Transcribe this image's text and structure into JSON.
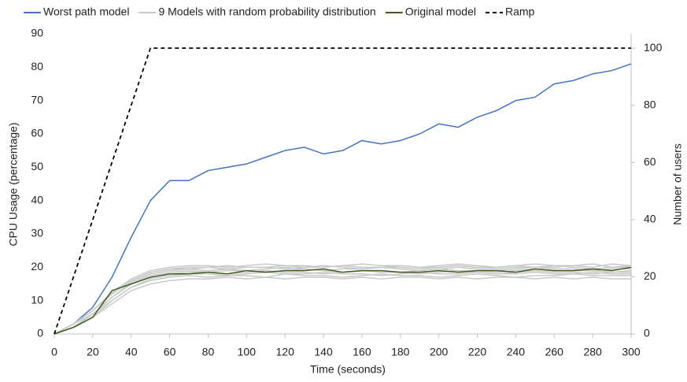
{
  "chart_data": {
    "type": "line",
    "xlabel": "Time (seconds)",
    "ylabel": "CPU Usage (percentage)",
    "y2label": "Number of users",
    "x": [
      0,
      10,
      20,
      30,
      40,
      50,
      60,
      70,
      80,
      90,
      100,
      110,
      120,
      130,
      140,
      150,
      160,
      170,
      180,
      190,
      200,
      210,
      220,
      230,
      240,
      250,
      260,
      270,
      280,
      290,
      300
    ],
    "xlim": [
      0,
      300
    ],
    "xticks": [
      0,
      20,
      40,
      60,
      80,
      100,
      120,
      140,
      160,
      180,
      200,
      220,
      240,
      260,
      280,
      300
    ],
    "ylim": [
      0,
      90
    ],
    "yticks": [
      0,
      10,
      20,
      30,
      40,
      50,
      60,
      70,
      80,
      90
    ],
    "y2lim": [
      0,
      105
    ],
    "y2ticks": [
      0,
      20,
      40,
      60,
      80,
      100
    ],
    "grid": false,
    "legend": "top",
    "series": [
      {
        "name": "Worst path model",
        "color": "#4472c4",
        "values": [
          0,
          3,
          8,
          17,
          29,
          40,
          46,
          46,
          49,
          50,
          51,
          53,
          55,
          56,
          54,
          55,
          58,
          57,
          58,
          60,
          63,
          62,
          65,
          67,
          70,
          71,
          75,
          76,
          78,
          79,
          81
        ]
      },
      {
        "name": "9 Models with random probability distribution",
        "color": "#c9c9c9",
        "values": [
          0,
          2,
          5,
          9,
          13,
          15,
          16,
          16.5,
          16.5,
          17,
          16.5,
          17,
          16.5,
          17,
          17,
          16.5,
          17,
          16.5,
          17,
          17,
          16.5,
          17,
          16.5,
          17,
          17,
          16.5,
          17,
          16.5,
          17,
          16.5,
          16.5
        ]
      },
      {
        "color": "#c9c9c9",
        "values": [
          0,
          2,
          5,
          10,
          14,
          16,
          17,
          17.5,
          17,
          17.5,
          17.5,
          17,
          18,
          17.5,
          17.5,
          17,
          17.5,
          18,
          17.5,
          17.5,
          17,
          17.5,
          18,
          17.5,
          17,
          17.5,
          17.5,
          18,
          17.5,
          17.5,
          17.5
        ]
      },
      {
        "color": "#c9c9c9",
        "values": [
          0,
          2,
          6,
          10,
          14,
          16.5,
          17.5,
          18,
          18,
          17.5,
          18,
          18.5,
          18,
          18,
          18.5,
          18,
          18,
          17.5,
          18,
          18.5,
          18,
          18,
          18.5,
          18,
          18,
          18.5,
          18,
          18,
          18.5,
          18,
          18
        ]
      },
      {
        "color": "#c9c9c9",
        "values": [
          0,
          2,
          6,
          11,
          15,
          17,
          18,
          18.5,
          18.5,
          18,
          18.5,
          19,
          18.5,
          18.5,
          18,
          18.5,
          19,
          18.5,
          18.5,
          18,
          18.5,
          19,
          18.5,
          18,
          18.5,
          19,
          18.5,
          18.5,
          18,
          18.5,
          18.5
        ]
      },
      {
        "color": "#c9c9c9",
        "values": [
          0,
          2,
          6,
          11,
          15,
          17.5,
          18.5,
          19,
          18.5,
          19,
          19,
          18.5,
          19,
          19.5,
          19,
          18.5,
          19,
          19,
          18.5,
          19,
          19.5,
          19,
          19,
          18.5,
          19,
          19.5,
          19,
          19,
          19,
          18.5,
          19
        ]
      },
      {
        "color": "#c9c9c9",
        "values": [
          0,
          3,
          6,
          11,
          15.5,
          18,
          19,
          19.5,
          19,
          19.5,
          19,
          19.5,
          20,
          19.5,
          19,
          19.5,
          19.5,
          20,
          19.5,
          19,
          19.5,
          20,
          19.5,
          19,
          19.5,
          20,
          19.5,
          19.5,
          19,
          19.5,
          19.5
        ]
      },
      {
        "color": "#c9c9c9",
        "values": [
          0,
          3,
          7,
          12,
          16,
          18.5,
          19.5,
          19.5,
          20,
          19.5,
          20,
          20,
          19.5,
          20,
          20.5,
          20,
          19.5,
          20,
          20,
          19.5,
          20,
          20.5,
          20,
          19.5,
          20,
          20,
          20.5,
          20,
          19.5,
          20,
          20
        ]
      },
      {
        "color": "#c9c9c9",
        "values": [
          0,
          3,
          7,
          12,
          16,
          18.5,
          19.5,
          20,
          20,
          20.5,
          20,
          20,
          20.5,
          20,
          20,
          20.5,
          20,
          20,
          20.5,
          20,
          20,
          20.5,
          20,
          20,
          20.5,
          20,
          20,
          20.5,
          21,
          20,
          20.5
        ]
      },
      {
        "color": "#c9c9c9",
        "values": [
          0,
          3,
          7,
          12.5,
          16.5,
          19,
          20,
          20.5,
          20.5,
          20,
          20.5,
          21,
          20.5,
          20.5,
          20,
          20.5,
          21,
          20.5,
          20.5,
          20,
          20.5,
          21,
          20.5,
          20,
          20.5,
          21,
          20.5,
          20.5,
          20,
          21,
          20.5
        ]
      },
      {
        "name": "Original model",
        "color": "#3b5e1f",
        "values": [
          0,
          2,
          5,
          13,
          15,
          17,
          18,
          18,
          18.5,
          18,
          19,
          18.5,
          19,
          19,
          19.5,
          18.5,
          19,
          19,
          18.5,
          18.5,
          19,
          18.5,
          19,
          19,
          18.5,
          19.5,
          19,
          19,
          19.5,
          19,
          20
        ]
      },
      {
        "name": "Ramp",
        "color": "#000000",
        "dashed": true,
        "axis": "y2",
        "values": [
          0,
          20,
          40,
          60,
          80,
          100,
          100,
          100,
          100,
          100,
          100,
          100,
          100,
          100,
          100,
          100,
          100,
          100,
          100,
          100,
          100,
          100,
          100,
          100,
          100,
          100,
          100,
          100,
          100,
          100,
          100
        ]
      }
    ]
  }
}
